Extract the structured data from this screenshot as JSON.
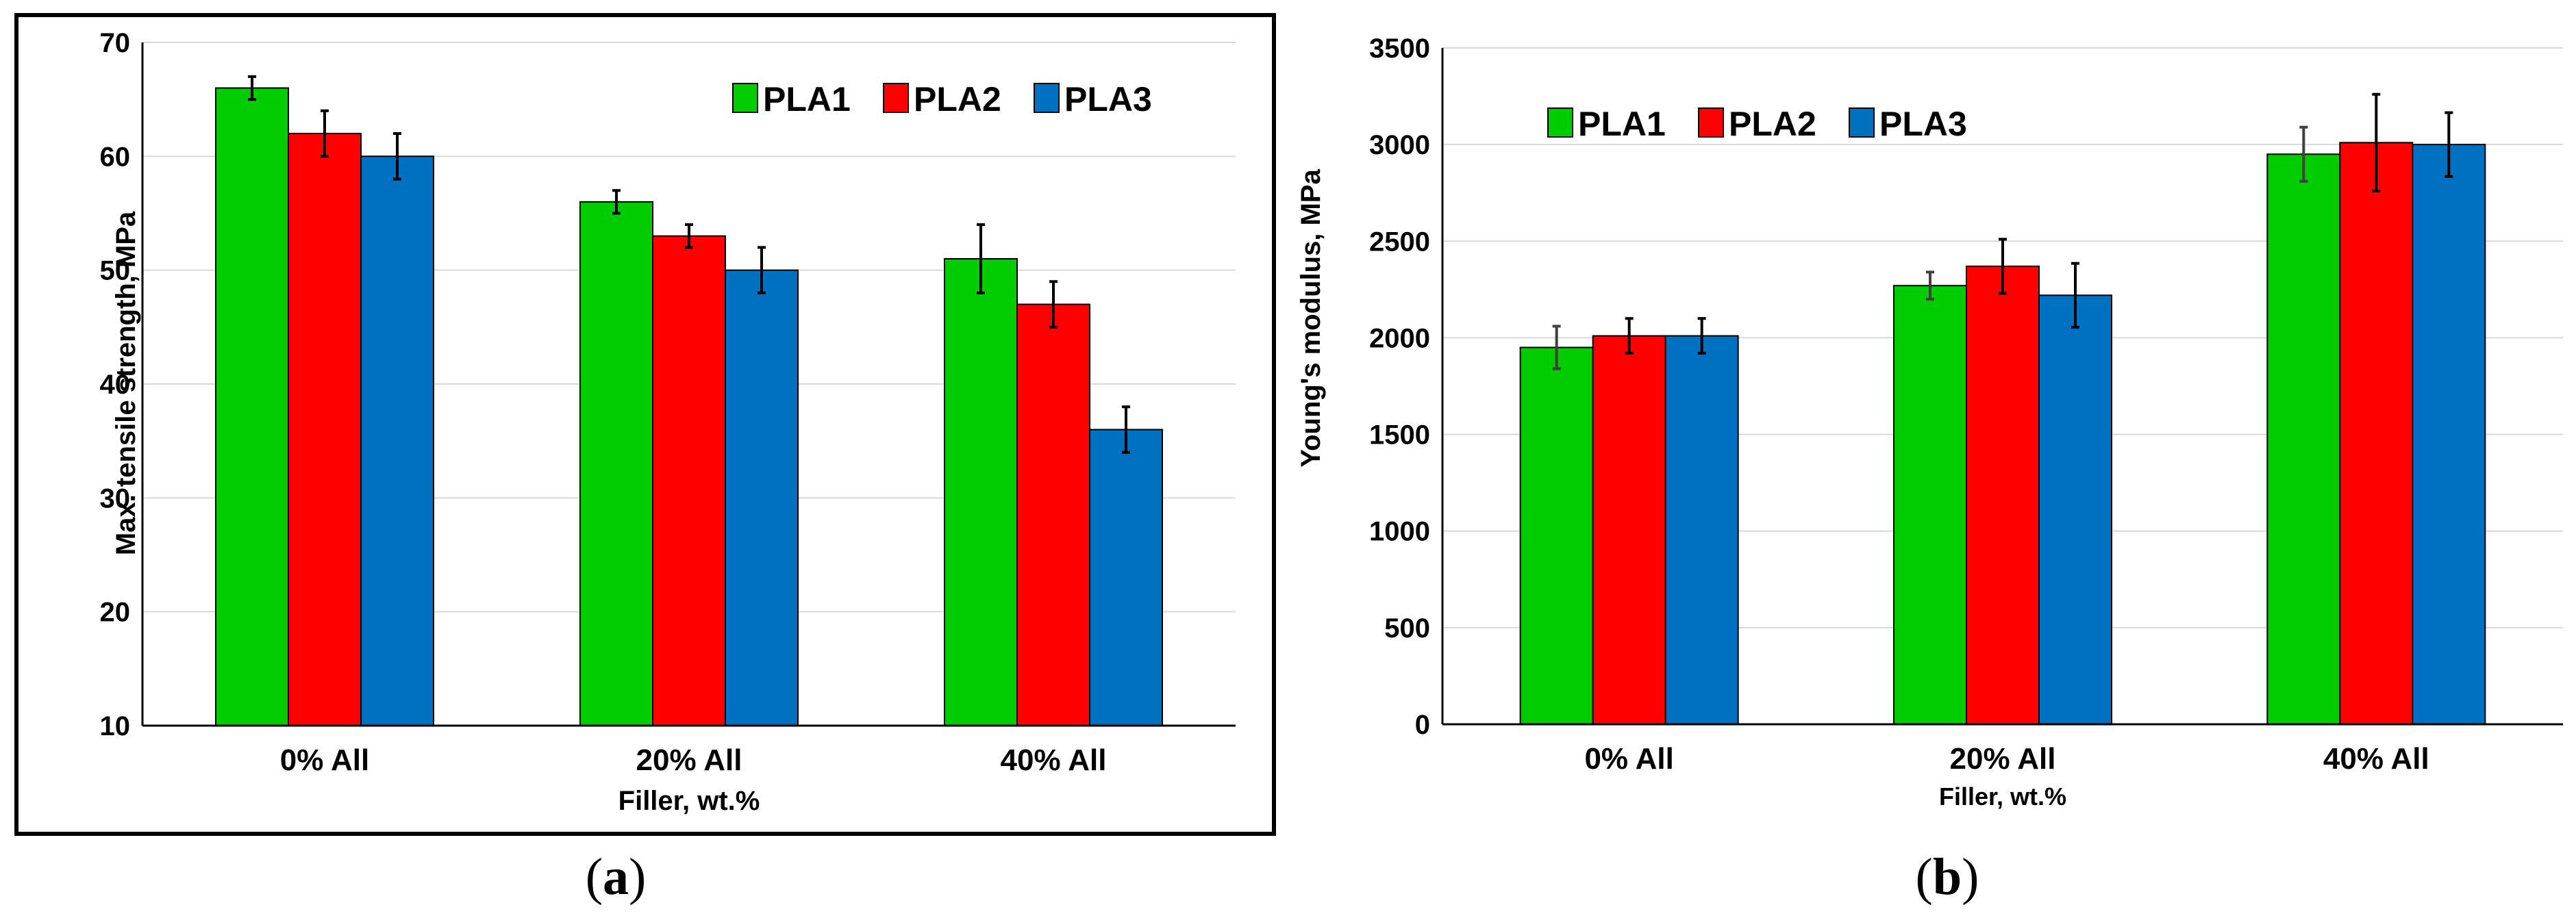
{
  "colors": {
    "PLA1": "#00CC00",
    "PLA2": "#FF0000",
    "PLA3": "#0070C0",
    "errorbar": "#000000",
    "errorbar_pla1_b": "#404040",
    "grid": "#D9D9D9"
  },
  "captions": {
    "a_open": "(",
    "a_letter": "a",
    "a_close": ")",
    "b_open": "(",
    "b_letter": "b",
    "b_close": ")"
  },
  "chart_data": [
    {
      "panel": "a",
      "type": "bar",
      "categories": [
        "0% All",
        "20% All",
        "40% All"
      ],
      "series": [
        {
          "name": "PLA1",
          "values": [
            66,
            56,
            51
          ],
          "errors": [
            1,
            1,
            3
          ]
        },
        {
          "name": "PLA2",
          "values": [
            62,
            53,
            47
          ],
          "errors": [
            2,
            1,
            2
          ]
        },
        {
          "name": "PLA3",
          "values": [
            60,
            50,
            36
          ],
          "errors": [
            2,
            2,
            2
          ]
        }
      ],
      "title": "",
      "xlabel": "Filler, wt.%",
      "ylabel": "Max. tensile strength, MPa",
      "ylim": [
        10,
        70
      ],
      "yticks": [
        10,
        20,
        30,
        40,
        50,
        60,
        70
      ],
      "grid": true,
      "legend": "top-right",
      "framed": true
    },
    {
      "panel": "b",
      "type": "bar",
      "categories": [
        "0% All",
        "20% All",
        "40% All"
      ],
      "series": [
        {
          "name": "PLA1",
          "values": [
            1950,
            2270,
            2950
          ],
          "errors": [
            110,
            70,
            140
          ]
        },
        {
          "name": "PLA2",
          "values": [
            2010,
            2370,
            3010
          ],
          "errors": [
            90,
            140,
            250
          ]
        },
        {
          "name": "PLA3",
          "values": [
            2010,
            2220,
            3000
          ],
          "errors": [
            90,
            165,
            165
          ]
        }
      ],
      "title": "",
      "xlabel": "Filler, wt.%",
      "ylabel": "Young's modulus, MPa",
      "ylim": [
        0,
        3500
      ],
      "yticks": [
        0,
        500,
        1000,
        1500,
        2000,
        2500,
        3000,
        3500
      ],
      "grid": true,
      "legend": "top-left",
      "framed": false
    }
  ]
}
